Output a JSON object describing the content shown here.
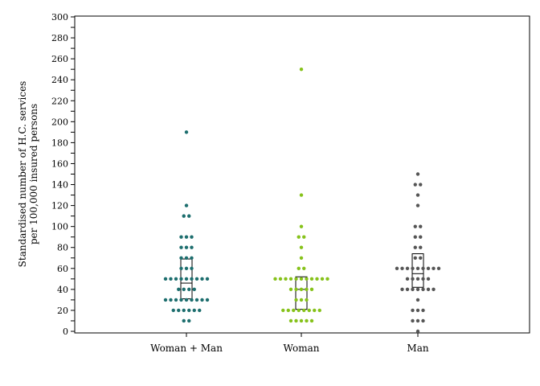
{
  "chart_data": {
    "type": "dot-strip",
    "title": "",
    "ylabel": [
      "Standardised number of H.C. services",
      "per 100,000 insured persons"
    ],
    "xlabel": "",
    "ylim": [
      0,
      300
    ],
    "ytick_step": 10,
    "yticks": [
      "0",
      "20",
      "40",
      "60",
      "80",
      "100",
      "120",
      "140",
      "160",
      "180",
      "200",
      "220",
      "240",
      "260",
      "280",
      "300"
    ],
    "grid": false,
    "categories": [
      "Woman + Man",
      "Woman",
      "Man"
    ],
    "series": [
      {
        "color": "#1d6e6e",
        "points": [
          10,
          10,
          20,
          20,
          20,
          20,
          20,
          20,
          30,
          30,
          30,
          30,
          30,
          30,
          30,
          30,
          30,
          40,
          40,
          40,
          40,
          50,
          50,
          50,
          50,
          50,
          50,
          50,
          50,
          50,
          60,
          60,
          60,
          70,
          70,
          70,
          80,
          80,
          80,
          90,
          90,
          90,
          110,
          110,
          120,
          190
        ],
        "box": {
          "q1": 31,
          "median": 46,
          "q3": 69
        }
      },
      {
        "color": "#86c21a",
        "points": [
          10,
          10,
          10,
          10,
          10,
          20,
          20,
          20,
          20,
          20,
          20,
          20,
          20,
          30,
          30,
          30,
          40,
          40,
          40,
          40,
          40,
          50,
          50,
          50,
          50,
          50,
          50,
          50,
          50,
          50,
          50,
          50,
          60,
          60,
          70,
          80,
          90,
          90,
          100,
          130,
          250
        ],
        "box": {
          "q1": 21,
          "median": 40,
          "q3": 52
        }
      },
      {
        "color": "#555555",
        "points": [
          0,
          10,
          10,
          10,
          20,
          20,
          20,
          30,
          40,
          40,
          40,
          40,
          40,
          40,
          40,
          50,
          50,
          50,
          50,
          50,
          60,
          60,
          60,
          60,
          60,
          60,
          60,
          60,
          60,
          70,
          70,
          80,
          80,
          90,
          90,
          100,
          100,
          120,
          130,
          140,
          140,
          150
        ],
        "box": {
          "q1": 42,
          "median": 55,
          "q3": 74
        }
      }
    ]
  }
}
